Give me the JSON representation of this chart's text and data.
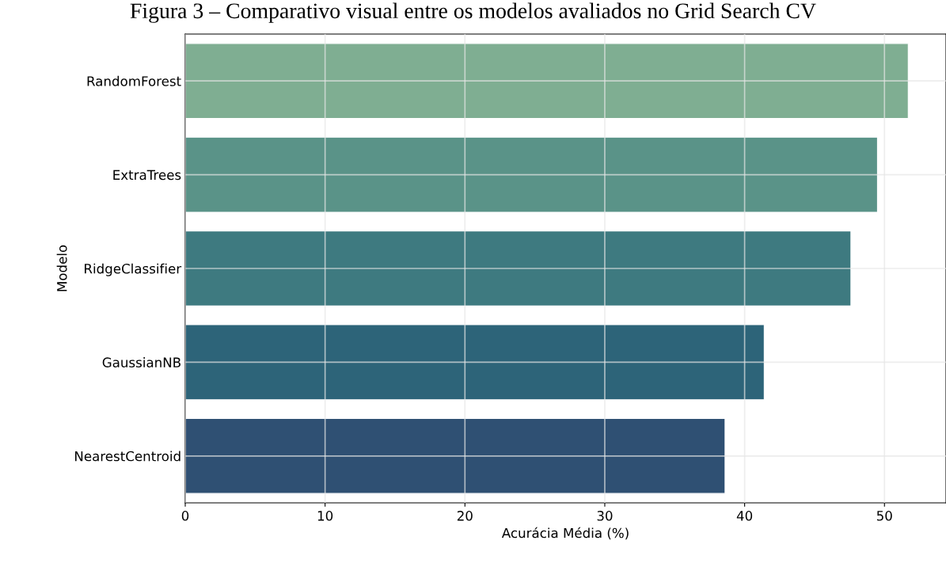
{
  "chart_data": {
    "type": "bar",
    "orientation": "horizontal",
    "title": "Figura 3 – Comparativo visual entre os modelos avaliados no Grid Search CV",
    "xlabel": "Acurácia Média (%)",
    "ylabel": "Modelo",
    "categories": [
      "RandomForest",
      "ExtraTrees",
      "RidgeClassifier",
      "GaussianNB",
      "NearestCentroid"
    ],
    "values": [
      51.7,
      49.5,
      47.6,
      41.4,
      38.6
    ],
    "colors": [
      "#7fae92",
      "#5a9388",
      "#3e7a80",
      "#2d6479",
      "#2f5073"
    ],
    "xlim": [
      0,
      54.4
    ],
    "xticks": [
      0,
      10,
      20,
      30,
      40,
      50
    ],
    "grid": true
  }
}
